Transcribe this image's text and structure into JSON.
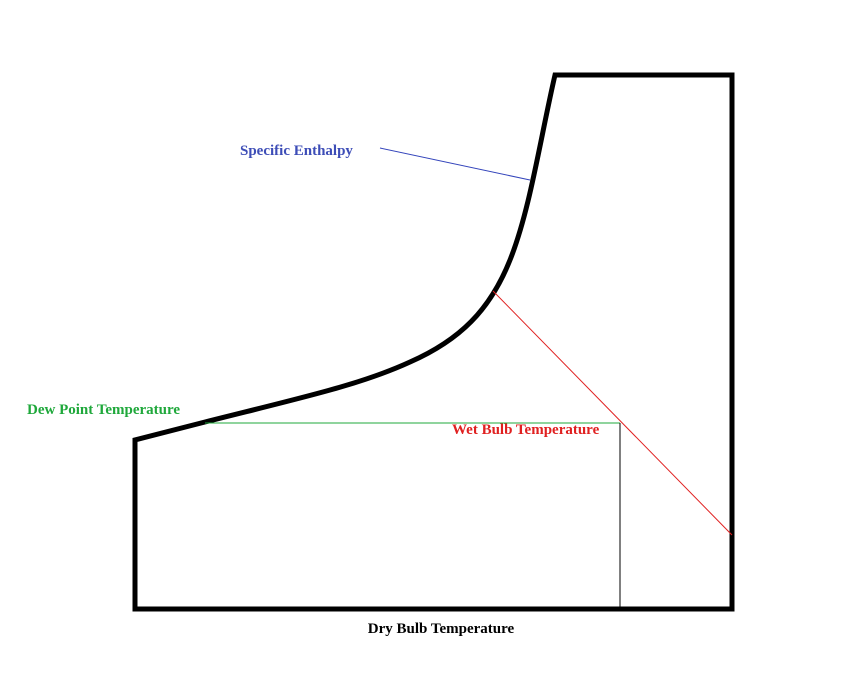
{
  "labels": {
    "specific_enthalpy": "Specific Enthalpy",
    "dew_point": "Dew Point Temperature",
    "wet_bulb": "Wet Bulb Temperature",
    "dry_bulb": "Dry Bulb Temperature"
  }
}
